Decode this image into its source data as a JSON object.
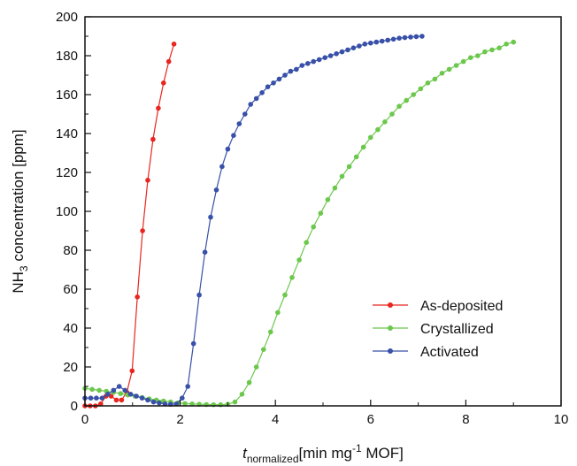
{
  "chart_data": {
    "type": "line",
    "title": "",
    "xlabel": {
      "italic": "t",
      "subscript": "normalized",
      "prefix": "[min mg",
      "superscript": "-1",
      "suffix": " MOF]"
    },
    "ylabel": {
      "prefix": "NH",
      "subscript": "3",
      "suffix": " concentration [ppm]"
    },
    "xlim": [
      0,
      10
    ],
    "ylim": [
      0,
      200
    ],
    "xticks": [
      0,
      2,
      4,
      6,
      8,
      10
    ],
    "xtick_labels": [
      "0",
      "2",
      "4",
      "6",
      "8",
      "10"
    ],
    "yticks": [
      0,
      20,
      40,
      60,
      80,
      100,
      120,
      140,
      160,
      180,
      200
    ],
    "ytick_labels": [
      "0",
      "20",
      "40",
      "60",
      "80",
      "100",
      "120",
      "140",
      "160",
      "180",
      "200"
    ],
    "grid": false,
    "legend_position": "bottom-right",
    "series": [
      {
        "name": "As-deposited",
        "color": "#e8261f",
        "points": [
          [
            0.0,
            0
          ],
          [
            0.11,
            0
          ],
          [
            0.22,
            0
          ],
          [
            0.33,
            1
          ],
          [
            0.44,
            5
          ],
          [
            0.55,
            5
          ],
          [
            0.66,
            3
          ],
          [
            0.77,
            3
          ],
          [
            0.88,
            7
          ],
          [
            0.99,
            18
          ],
          [
            1.1,
            56
          ],
          [
            1.21,
            90
          ],
          [
            1.32,
            116
          ],
          [
            1.43,
            137
          ],
          [
            1.54,
            153
          ],
          [
            1.65,
            166
          ],
          [
            1.76,
            177
          ],
          [
            1.87,
            186
          ]
        ]
      },
      {
        "name": "Crystallized",
        "color": "#6cc84c",
        "points": [
          [
            0.0,
            9
          ],
          [
            0.15,
            8.5
          ],
          [
            0.3,
            8
          ],
          [
            0.45,
            7.5
          ],
          [
            0.6,
            7
          ],
          [
            0.75,
            6.3
          ],
          [
            0.9,
            5.6
          ],
          [
            1.05,
            5
          ],
          [
            1.2,
            4.3
          ],
          [
            1.35,
            3.6
          ],
          [
            1.5,
            3
          ],
          [
            1.65,
            2.5
          ],
          [
            1.8,
            2
          ],
          [
            1.95,
            1.5
          ],
          [
            2.1,
            1.2
          ],
          [
            2.25,
            1
          ],
          [
            2.4,
            0.8
          ],
          [
            2.55,
            0.7
          ],
          [
            2.7,
            0.6
          ],
          [
            2.85,
            0.6
          ],
          [
            3.0,
            0.8
          ],
          [
            3.15,
            2
          ],
          [
            3.3,
            6
          ],
          [
            3.45,
            12
          ],
          [
            3.6,
            20
          ],
          [
            3.75,
            29
          ],
          [
            3.9,
            38
          ],
          [
            4.05,
            48
          ],
          [
            4.2,
            57
          ],
          [
            4.35,
            66
          ],
          [
            4.5,
            75
          ],
          [
            4.65,
            84
          ],
          [
            4.8,
            92
          ],
          [
            4.95,
            99
          ],
          [
            5.1,
            106
          ],
          [
            5.25,
            112
          ],
          [
            5.4,
            118
          ],
          [
            5.55,
            123
          ],
          [
            5.7,
            128
          ],
          [
            5.85,
            133
          ],
          [
            6.0,
            138
          ],
          [
            6.15,
            142
          ],
          [
            6.3,
            146
          ],
          [
            6.45,
            150
          ],
          [
            6.6,
            154
          ],
          [
            6.75,
            157
          ],
          [
            6.9,
            160
          ],
          [
            7.05,
            163
          ],
          [
            7.2,
            166
          ],
          [
            7.35,
            168
          ],
          [
            7.5,
            171
          ],
          [
            7.65,
            173
          ],
          [
            7.8,
            175
          ],
          [
            7.95,
            177
          ],
          [
            8.1,
            179
          ],
          [
            8.25,
            180
          ],
          [
            8.4,
            182
          ],
          [
            8.55,
            183
          ],
          [
            8.7,
            184
          ],
          [
            8.85,
            186
          ],
          [
            9.0,
            187
          ]
        ]
      },
      {
        "name": "Activated",
        "color": "#3850a8",
        "points": [
          [
            0.0,
            4
          ],
          [
            0.12,
            4
          ],
          [
            0.24,
            4
          ],
          [
            0.36,
            4
          ],
          [
            0.48,
            6
          ],
          [
            0.6,
            8
          ],
          [
            0.72,
            10
          ],
          [
            0.84,
            8
          ],
          [
            0.96,
            6
          ],
          [
            1.08,
            5
          ],
          [
            1.2,
            4
          ],
          [
            1.32,
            3
          ],
          [
            1.44,
            2
          ],
          [
            1.56,
            1.5
          ],
          [
            1.68,
            1
          ],
          [
            1.8,
            0.8
          ],
          [
            1.92,
            1
          ],
          [
            2.04,
            4
          ],
          [
            2.16,
            10
          ],
          [
            2.28,
            32
          ],
          [
            2.4,
            57
          ],
          [
            2.52,
            79
          ],
          [
            2.64,
            97
          ],
          [
            2.76,
            111
          ],
          [
            2.88,
            123
          ],
          [
            3.0,
            132
          ],
          [
            3.12,
            139
          ],
          [
            3.24,
            145
          ],
          [
            3.36,
            150
          ],
          [
            3.48,
            155
          ],
          [
            3.6,
            158
          ],
          [
            3.72,
            161
          ],
          [
            3.84,
            164
          ],
          [
            3.96,
            166
          ],
          [
            4.08,
            168
          ],
          [
            4.2,
            170
          ],
          [
            4.32,
            172
          ],
          [
            4.44,
            173
          ],
          [
            4.56,
            175
          ],
          [
            4.68,
            176
          ],
          [
            4.8,
            177
          ],
          [
            4.92,
            178
          ],
          [
            5.04,
            179
          ],
          [
            5.16,
            180
          ],
          [
            5.28,
            181
          ],
          [
            5.4,
            182
          ],
          [
            5.52,
            183
          ],
          [
            5.64,
            184
          ],
          [
            5.76,
            185
          ],
          [
            5.88,
            186
          ],
          [
            6.0,
            186.5
          ],
          [
            6.12,
            187
          ],
          [
            6.24,
            187.5
          ],
          [
            6.36,
            188
          ],
          [
            6.48,
            188.5
          ],
          [
            6.6,
            189
          ],
          [
            6.72,
            189.3
          ],
          [
            6.84,
            189.6
          ],
          [
            6.96,
            189.8
          ],
          [
            7.08,
            190
          ]
        ]
      }
    ]
  }
}
